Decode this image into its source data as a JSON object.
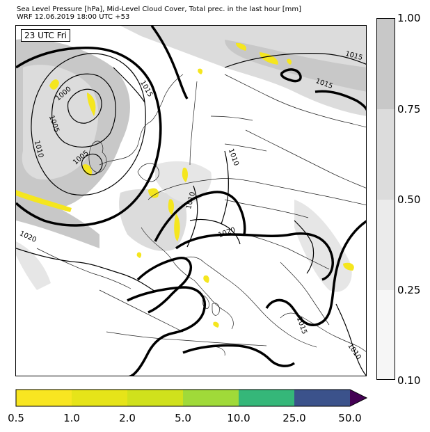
{
  "header": {
    "line1": "Sea Level Pressure [hPa], Mid-Level Cloud Cover, Total prec. in the last hour [mm]",
    "line2": "WRF 12.06.2019 18:00 UTC +53"
  },
  "map": {
    "time_label": "23 UTC Fri",
    "isobar_labels": [
      "1000",
      "1005",
      "1010",
      "1005",
      "1015",
      "1015",
      "1015",
      "1010",
      "1010",
      "1020",
      "1020",
      "1015",
      "1010"
    ],
    "colors": {
      "cloud": "#c8c8c8",
      "cloud_light": "#e6e6e6",
      "precip": "#f5e61e",
      "isobar": "#000000"
    }
  },
  "cloud_colorbar": {
    "ticks": [
      "1.00",
      "0.75",
      "0.50",
      "0.25",
      "0.10"
    ],
    "colors": [
      "#c8c8c8",
      "#dcdcdc",
      "#ebebeb",
      "#f6f6f6"
    ]
  },
  "precip_colorbar": {
    "ticks": [
      "0.5",
      "1.0",
      "2.0",
      "5.0",
      "10.0",
      "25.0",
      "50.0"
    ],
    "colors": [
      "#f8e621",
      "#e6e419",
      "#d0e11c",
      "#a0da39",
      "#35b779",
      "#3b528b",
      "#440154"
    ]
  }
}
